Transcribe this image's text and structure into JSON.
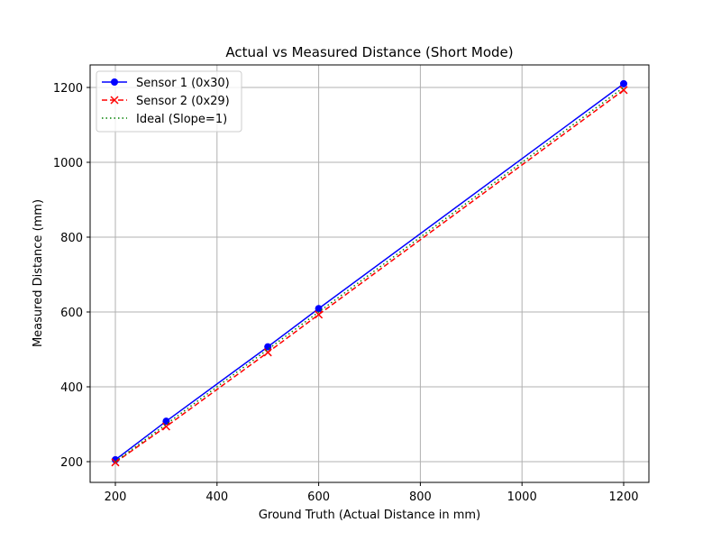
{
  "chart_data": {
    "type": "line",
    "title": "Actual vs Measured Distance (Short Mode)",
    "xlabel": "Ground Truth (Actual Distance in mm)",
    "ylabel": "Measured Distance (mm)",
    "x": [
      200,
      300,
      500,
      600,
      1200
    ],
    "series": [
      {
        "name": "Sensor 1 (0x30)",
        "color": "#0000ff",
        "style": "solid",
        "marker": "circle",
        "values": [
          205,
          308,
          507,
          609,
          1210
        ]
      },
      {
        "name": "Sensor 2 (0x29)",
        "color": "#ff0000",
        "style": "dashed",
        "marker": "x",
        "values": [
          198,
          294,
          492,
          593,
          1193
        ]
      },
      {
        "name": "Ideal (Slope=1)",
        "color": "#008000",
        "style": "dotted",
        "marker": "none",
        "values": [
          200,
          300,
          500,
          600,
          1200
        ]
      }
    ],
    "xticks": [
      "200",
      "400",
      "600",
      "800",
      "1000",
      "1200"
    ],
    "yticks": [
      "200",
      "400",
      "600",
      "800",
      "1000",
      "1200"
    ],
    "xlim": [
      155,
      1245
    ],
    "ylim": [
      150,
      1260
    ],
    "grid": true,
    "legend_position": "upper left"
  }
}
